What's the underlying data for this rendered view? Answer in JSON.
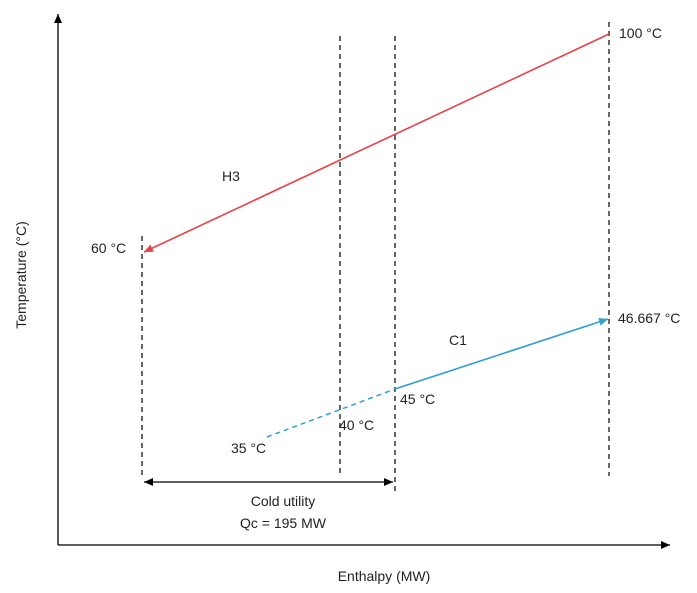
{
  "axes": {
    "x_label": "Enthalpy (MW)",
    "y_label": "Temperature (°C)"
  },
  "streams": {
    "hot": {
      "name": "H3",
      "color": "#e8414a",
      "start_label": "100 °C",
      "end_label": "60 °C"
    },
    "cold": {
      "name": "C1",
      "color": "#2e9fd0",
      "start_label": "35 °C",
      "mid_label": "40 °C",
      "utility_end_label": "45 °C",
      "end_label": "46.667 °C"
    }
  },
  "cold_utility": {
    "label": "Cold utility",
    "duty": "Qc = 195 MW"
  }
}
